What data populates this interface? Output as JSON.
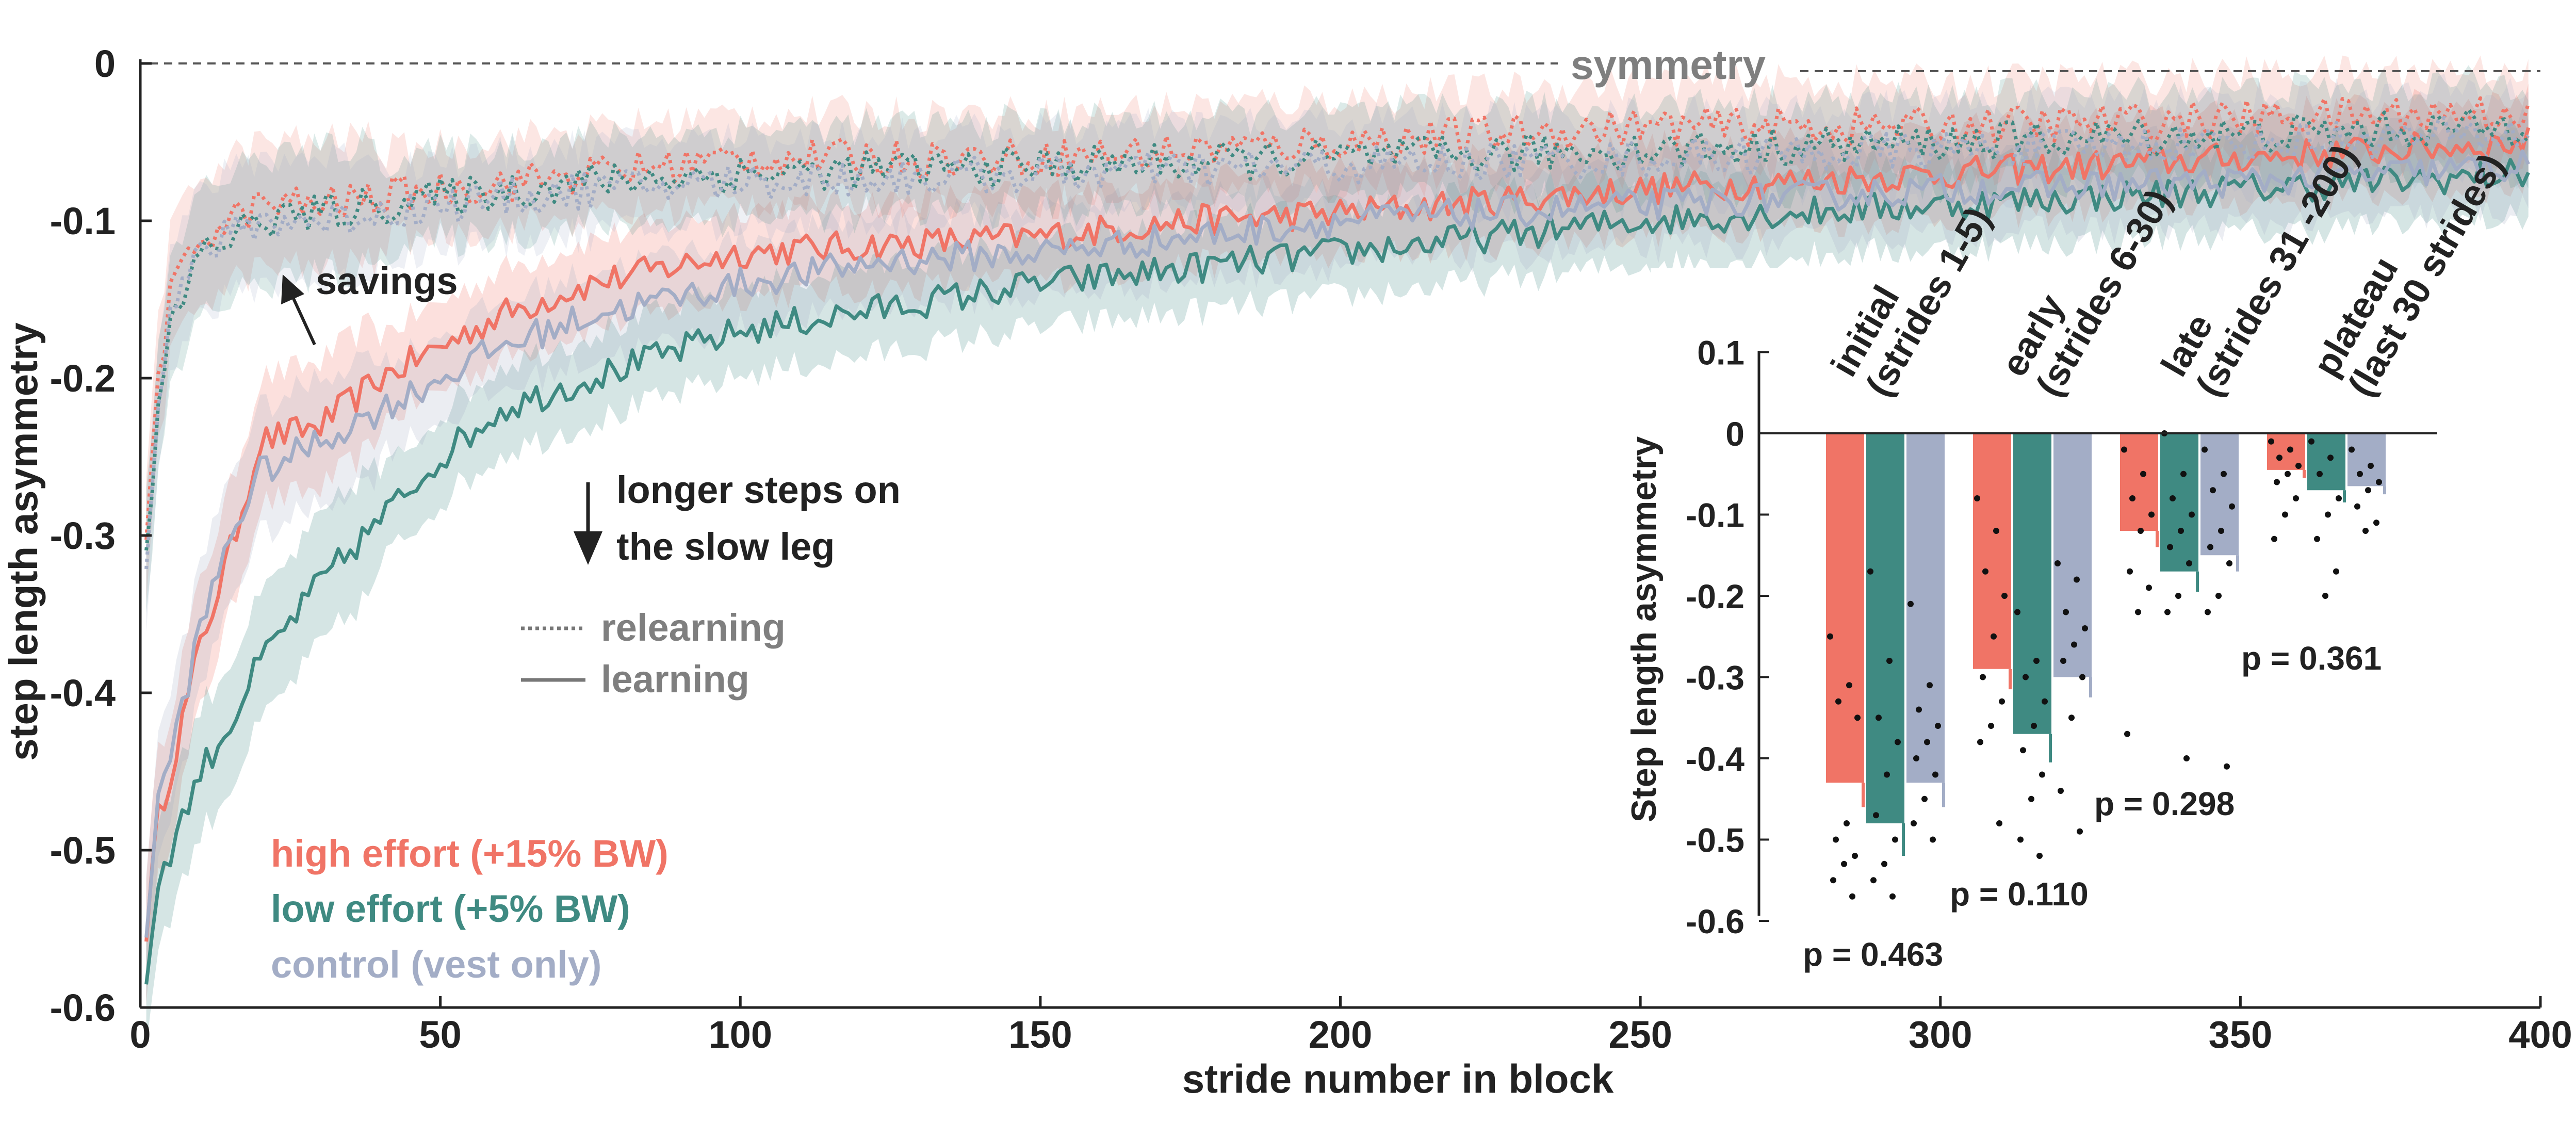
{
  "colors": {
    "high": "#f07466",
    "low": "#3f8a82",
    "control": "#a3adc6",
    "axis": "#222222",
    "gray_text": "#7f7f7f"
  },
  "main": {
    "xlabel": "stride number in block",
    "ylabel": "step length asymmetry",
    "xticks": [
      "0",
      "50",
      "100",
      "150",
      "200",
      "250",
      "300",
      "350",
      "400"
    ],
    "yticks": [
      "0",
      "-0.1",
      "-0.2",
      "-0.3",
      "-0.4",
      "-0.5",
      "-0.6"
    ],
    "symmetry_label": "symmetry",
    "savings_label": "savings",
    "longer_steps_line1": "longer steps on",
    "longer_steps_line2": "the slow leg",
    "legend_relearning": "relearning",
    "legend_learning": "learning",
    "legend_high": "high effort (+15% BW)",
    "legend_low": "low effort (+5% BW)",
    "legend_control": "control (vest only)"
  },
  "inset": {
    "ylabel": "Step length asymmetry",
    "yticks": [
      "0.1",
      "0",
      "-0.1",
      "-0.2",
      "-0.3",
      "-0.4",
      "-0.5",
      "-0.6"
    ],
    "phase_labels": [
      {
        "line1": "initial",
        "line2": "(strides 1-5)"
      },
      {
        "line1": "early",
        "line2": "(strides 6-30)"
      },
      {
        "line1": "late",
        "line2": "(strides 31 -200)"
      },
      {
        "line1": "plateau",
        "line2": "(last 30 strides)"
      }
    ],
    "pvalues": [
      "p = 0.463",
      "p = 0.110",
      "p = 0.298",
      "p = 0.361"
    ]
  },
  "chart_data": [
    {
      "type": "line",
      "xlabel": "stride number in block",
      "ylabel": "step length asymmetry",
      "xlim": [
        0,
        400
      ],
      "ylim": [
        -0.6,
        0
      ],
      "annotations": [
        "symmetry",
        "savings",
        "longer steps on the slow leg"
      ],
      "series": [
        {
          "name": "high effort (+15% BW) learning",
          "color": "#f07466",
          "style": "solid",
          "x": [
            1,
            3,
            5,
            10,
            15,
            20,
            30,
            40,
            50,
            60,
            75,
            100,
            125,
            150,
            175,
            200,
            250,
            300,
            350,
            398
          ],
          "y": [
            -0.55,
            -0.48,
            -0.45,
            -0.37,
            -0.31,
            -0.24,
            -0.23,
            -0.2,
            -0.18,
            -0.16,
            -0.14,
            -0.12,
            -0.115,
            -0.11,
            -0.1,
            -0.095,
            -0.08,
            -0.07,
            -0.06,
            -0.05
          ]
        },
        {
          "name": "low effort (+5% BW) learning",
          "color": "#3f8a82",
          "style": "solid",
          "x": [
            1,
            3,
            5,
            10,
            15,
            20,
            30,
            40,
            50,
            60,
            75,
            100,
            125,
            150,
            175,
            200,
            250,
            300,
            350,
            398
          ],
          "y": [
            -0.58,
            -0.52,
            -0.5,
            -0.45,
            -0.42,
            -0.38,
            -0.33,
            -0.29,
            -0.25,
            -0.22,
            -0.2,
            -0.17,
            -0.155,
            -0.14,
            -0.13,
            -0.12,
            -0.1,
            -0.09,
            -0.08,
            -0.07
          ]
        },
        {
          "name": "control (vest only) learning",
          "color": "#a3adc6",
          "style": "solid",
          "x": [
            1,
            3,
            5,
            10,
            15,
            20,
            30,
            40,
            50,
            60,
            75,
            100,
            125,
            150,
            175,
            200,
            250,
            300,
            350,
            398
          ],
          "y": [
            -0.55,
            -0.47,
            -0.44,
            -0.36,
            -0.3,
            -0.26,
            -0.24,
            -0.22,
            -0.2,
            -0.18,
            -0.16,
            -0.14,
            -0.125,
            -0.12,
            -0.11,
            -0.1,
            -0.09,
            -0.08,
            -0.075,
            -0.065
          ]
        },
        {
          "name": "high effort (+15% BW) relearning",
          "color": "#f07466",
          "style": "dotted",
          "x": [
            1,
            3,
            5,
            10,
            15,
            20,
            30,
            50,
            75,
            100,
            150,
            200,
            250,
            300,
            350,
            398
          ],
          "y": [
            -0.3,
            -0.2,
            -0.15,
            -0.11,
            -0.1,
            -0.09,
            -0.09,
            -0.08,
            -0.07,
            -0.06,
            -0.06,
            -0.05,
            -0.04,
            -0.04,
            -0.035,
            -0.03
          ]
        },
        {
          "name": "low effort (+5% BW) relearning",
          "color": "#3f8a82",
          "style": "dotted",
          "x": [
            1,
            3,
            5,
            10,
            15,
            20,
            30,
            50,
            75,
            100,
            150,
            200,
            250,
            300,
            350,
            398
          ],
          "y": [
            -0.32,
            -0.22,
            -0.17,
            -0.12,
            -0.11,
            -0.1,
            -0.095,
            -0.085,
            -0.075,
            -0.07,
            -0.065,
            -0.06,
            -0.055,
            -0.05,
            -0.045,
            -0.04
          ]
        },
        {
          "name": "control (vest only) relearning",
          "color": "#a3adc6",
          "style": "dotted",
          "x": [
            1,
            3,
            5,
            10,
            15,
            20,
            30,
            50,
            75,
            100,
            150,
            200,
            250,
            300,
            350,
            398
          ],
          "y": [
            -0.31,
            -0.21,
            -0.16,
            -0.12,
            -0.11,
            -0.1,
            -0.1,
            -0.09,
            -0.08,
            -0.075,
            -0.07,
            -0.065,
            -0.06,
            -0.055,
            -0.05,
            -0.045
          ]
        }
      ]
    },
    {
      "type": "bar",
      "ylabel": "Step length asymmetry",
      "ylim": [
        -0.6,
        0.1
      ],
      "categories": [
        "initial (strides 1-5)",
        "early (strides 6-30)",
        "late (strides 31 -200)",
        "plateau (last 30 strides)"
      ],
      "series": [
        {
          "name": "high effort (+15% BW)",
          "color": "#f07466",
          "values": [
            -0.43,
            -0.29,
            -0.12,
            -0.045
          ],
          "errors": [
            0.03,
            0.025,
            0.02,
            0.01
          ],
          "points": [
            [
              -0.25,
              -0.31,
              -0.33,
              -0.35,
              -0.48,
              -0.5,
              -0.52,
              -0.53,
              -0.55,
              -0.57
            ],
            [
              -0.08,
              -0.12,
              -0.17,
              -0.2,
              -0.25,
              -0.3,
              -0.33,
              -0.36,
              -0.38,
              -0.48
            ],
            [
              -0.02,
              -0.05,
              -0.08,
              -0.1,
              -0.12,
              -0.17,
              -0.19,
              -0.22,
              -0.37
            ],
            [
              -0.01,
              -0.02,
              -0.03,
              -0.04,
              -0.05,
              -0.06,
              -0.08,
              -0.1,
              -0.13
            ]
          ]
        },
        {
          "name": "low effort (+5% BW)",
          "color": "#3f8a82",
          "values": [
            -0.48,
            -0.37,
            -0.17,
            -0.07
          ],
          "errors": [
            0.04,
            0.035,
            0.025,
            0.015
          ],
          "points": [
            [
              -0.17,
              -0.28,
              -0.35,
              -0.38,
              -0.42,
              -0.47,
              -0.5,
              -0.53,
              -0.55,
              -0.57
            ],
            [
              -0.22,
              -0.28,
              -0.3,
              -0.33,
              -0.36,
              -0.39,
              -0.42,
              -0.45,
              -0.5,
              -0.52
            ],
            [
              0.0,
              -0.05,
              -0.08,
              -0.1,
              -0.12,
              -0.14,
              -0.16,
              -0.2,
              -0.22,
              -0.4
            ],
            [
              -0.01,
              -0.03,
              -0.05,
              -0.08,
              -0.1,
              -0.13,
              -0.17,
              -0.2
            ]
          ]
        },
        {
          "name": "control (vest only)",
          "color": "#a3adc6",
          "values": [
            -0.43,
            -0.3,
            -0.15,
            -0.065
          ],
          "errors": [
            0.03,
            0.025,
            0.02,
            0.01
          ],
          "points": [
            [
              -0.21,
              -0.31,
              -0.34,
              -0.36,
              -0.38,
              -0.4,
              -0.42,
              -0.45,
              -0.48,
              -0.5
            ],
            [
              -0.16,
              -0.18,
              -0.22,
              -0.24,
              -0.26,
              -0.28,
              -0.3,
              -0.35,
              -0.44,
              -0.49
            ],
            [
              -0.02,
              -0.05,
              -0.07,
              -0.09,
              -0.12,
              -0.14,
              -0.16,
              -0.2,
              -0.22,
              -0.41
            ],
            [
              -0.02,
              -0.04,
              -0.05,
              -0.06,
              -0.07,
              -0.09,
              -0.11,
              -0.12
            ]
          ]
        }
      ],
      "annotations": [
        "p = 0.463",
        "p = 0.110",
        "p = 0.298",
        "p = 0.361"
      ]
    }
  ]
}
